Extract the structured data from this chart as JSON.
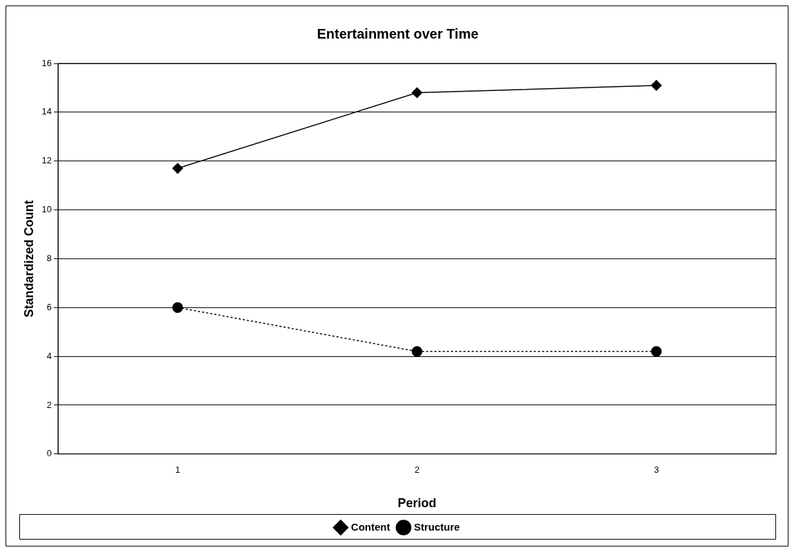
{
  "chart_data": {
    "type": "line",
    "title": "Entertainment over Time",
    "xlabel": "Period",
    "ylabel": "Standardized Count",
    "categories": [
      "1",
      "2",
      "3"
    ],
    "series": [
      {
        "name": "Content",
        "color": "#000000",
        "values": [
          11.7,
          14.8,
          15.1
        ],
        "marker": "diamond",
        "line_style": "solid"
      },
      {
        "name": "Structure",
        "color": "#000000",
        "values": [
          6.0,
          4.2,
          4.2
        ],
        "marker": "circle",
        "line_style": "dotted"
      }
    ],
    "ylim": [
      0,
      16
    ],
    "yticks": [
      0,
      2,
      4,
      6,
      8,
      10,
      12,
      14,
      16
    ],
    "grid": "y",
    "legend": "bottom"
  }
}
